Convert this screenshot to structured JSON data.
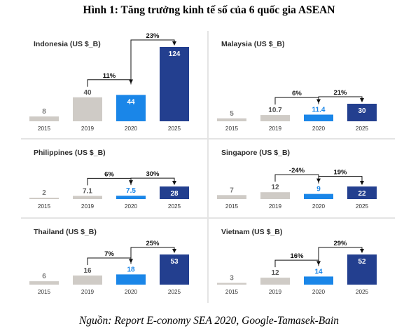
{
  "figure": {
    "title": "Hình 1: Tăng trưởng kinh tế số của 6 quốc gia ASEAN",
    "source": "Nguồn: Report E-conomy SEA 2020, Google-Tamasek-Bain"
  },
  "colors": {
    "bar_2015": "#cfcbc6",
    "bar_2019": "#cfcbc6",
    "bar_2020": "#1a86e8",
    "bar_2025": "#233f8f",
    "value_2015": "#7a7a7a",
    "value_2019": "#555555",
    "value_2020": "#1a86e8",
    "value_2025": "#ffffff",
    "growth_arrow": "#111111"
  },
  "chart_data": [
    {
      "type": "bar",
      "title": "Indonesia (US $_B)",
      "categories": [
        "2015",
        "2019",
        "2020",
        "2025"
      ],
      "values": [
        8,
        40,
        44,
        124
      ],
      "value_labels": [
        "8",
        "40",
        "44",
        "124"
      ],
      "growth": [
        {
          "from": "2019",
          "to": "2020",
          "label": "11%"
        },
        {
          "from": "2020",
          "to": "2025",
          "label": "23%"
        }
      ]
    },
    {
      "type": "bar",
      "title": "Malaysia (US $_B)",
      "categories": [
        "2015",
        "2019",
        "2020",
        "2025"
      ],
      "values": [
        5,
        10.7,
        11.4,
        30
      ],
      "value_labels": [
        "5",
        "10.7",
        "11.4",
        "30"
      ],
      "growth": [
        {
          "from": "2019",
          "to": "2020",
          "label": "6%"
        },
        {
          "from": "2020",
          "to": "2025",
          "label": "21%"
        }
      ]
    },
    {
      "type": "bar",
      "title": "Philippines (US $_B)",
      "categories": [
        "2015",
        "2019",
        "2020",
        "2025"
      ],
      "values": [
        2,
        7.1,
        7.5,
        28
      ],
      "value_labels": [
        "2",
        "7.1",
        "7.5",
        "28"
      ],
      "growth": [
        {
          "from": "2019",
          "to": "2020",
          "label": "6%"
        },
        {
          "from": "2020",
          "to": "2025",
          "label": "30%"
        }
      ]
    },
    {
      "type": "bar",
      "title": "Singapore (US $_B)",
      "categories": [
        "2015",
        "2019",
        "2020",
        "2025"
      ],
      "values": [
        7,
        12,
        9,
        22
      ],
      "value_labels": [
        "7",
        "12",
        "9",
        "22"
      ],
      "growth": [
        {
          "from": "2019",
          "to": "2020",
          "label": "-24%"
        },
        {
          "from": "2020",
          "to": "2025",
          "label": "19%"
        }
      ]
    },
    {
      "type": "bar",
      "title": "Thailand (US $_B)",
      "categories": [
        "2015",
        "2019",
        "2020",
        "2025"
      ],
      "values": [
        6,
        16,
        18,
        53
      ],
      "value_labels": [
        "6",
        "16",
        "18",
        "53"
      ],
      "growth": [
        {
          "from": "2019",
          "to": "2020",
          "label": "7%"
        },
        {
          "from": "2020",
          "to": "2025",
          "label": "25%"
        }
      ]
    },
    {
      "type": "bar",
      "title": "Vietnam (US $_B)",
      "categories": [
        "2015",
        "2019",
        "2020",
        "2025"
      ],
      "values": [
        3,
        12,
        14,
        52
      ],
      "value_labels": [
        "3",
        "12",
        "14",
        "52"
      ],
      "growth": [
        {
          "from": "2019",
          "to": "2020",
          "label": "16%"
        },
        {
          "from": "2020",
          "to": "2025",
          "label": "29%"
        }
      ]
    }
  ]
}
